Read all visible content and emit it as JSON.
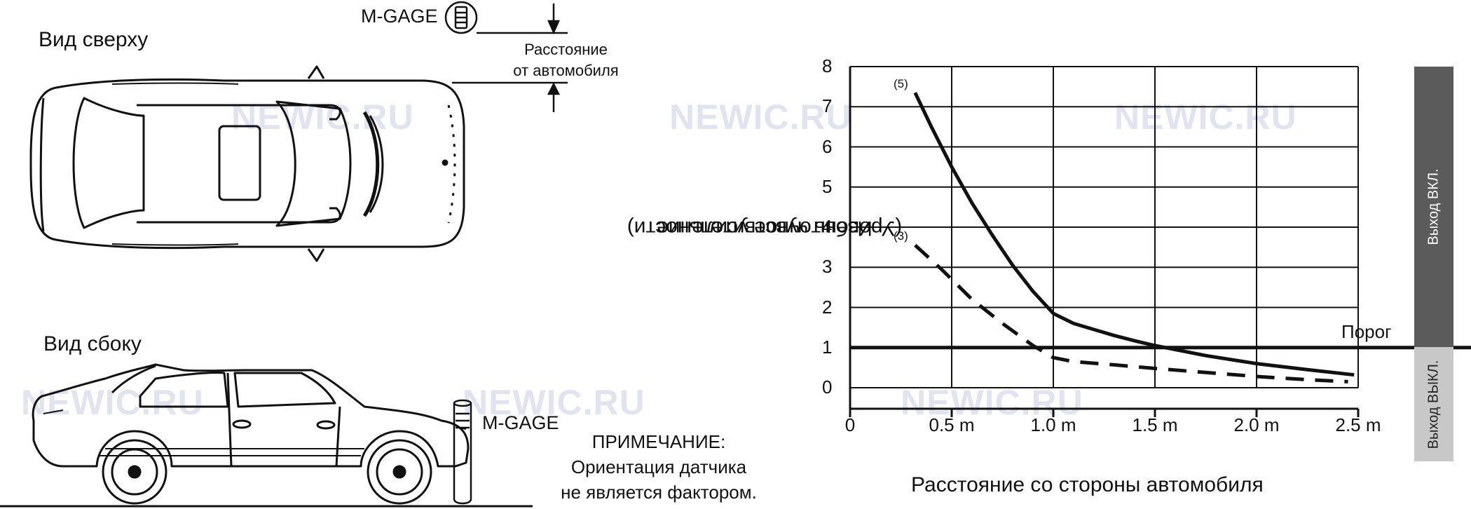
{
  "diagram": {
    "top_view_label": "Вид сверху",
    "side_view_label": "Вид сбоку",
    "sensor_label_top": "M-GAGE",
    "sensor_label_side": "M-GAGE",
    "distance_label_1": "Расстояние",
    "distance_label_2": "от автомобиля",
    "note_title": "ПРИМЕЧАНИЕ:",
    "note_line_1": "Ориентация датчика",
    "note_line_2": "не является фактором.",
    "watermark": "NEWIC.RU"
  },
  "chart_data": {
    "type": "line",
    "xlabel": "Расстояние со стороны автомобиля",
    "ylabel_line1": "Избыточное усиление",
    "ylabel_line2": "(Уровень чувствительности)",
    "x_ticks": [
      "0",
      "0.5 m",
      "1.0 m",
      "1.5 m",
      "2.0 m",
      "2.5 m"
    ],
    "y_ticks": [
      "0",
      "1",
      "2",
      "3",
      "4",
      "5",
      "6",
      "7",
      "8"
    ],
    "xlim": [
      0,
      2.5
    ],
    "ylim": [
      0,
      8
    ],
    "grid": true,
    "threshold": {
      "label": "Порог",
      "value": 1
    },
    "series": [
      {
        "name": "(5)",
        "style": "solid",
        "x": [
          0.32,
          0.4,
          0.5,
          0.6,
          0.7,
          0.8,
          0.9,
          1.0,
          1.1,
          1.2,
          1.3,
          1.4,
          1.5,
          1.75,
          2.0,
          2.25,
          2.48
        ],
        "y": [
          7.35,
          6.5,
          5.5,
          4.6,
          3.8,
          3.05,
          2.4,
          1.85,
          1.6,
          1.45,
          1.3,
          1.17,
          1.05,
          0.8,
          0.6,
          0.45,
          0.32
        ]
      },
      {
        "name": "(3)",
        "style": "dashed",
        "x": [
          0.32,
          0.45,
          0.6,
          0.75,
          0.9,
          1.0,
          1.1,
          1.3,
          1.5,
          1.75,
          2.0,
          2.25,
          2.45
        ],
        "y": [
          3.55,
          2.95,
          2.2,
          1.6,
          1.05,
          0.75,
          0.65,
          0.57,
          0.48,
          0.38,
          0.28,
          0.2,
          0.15
        ]
      }
    ],
    "output_on_label": "Выход ВКЛ.",
    "output_off_label": "Выход ВЫКЛ."
  }
}
